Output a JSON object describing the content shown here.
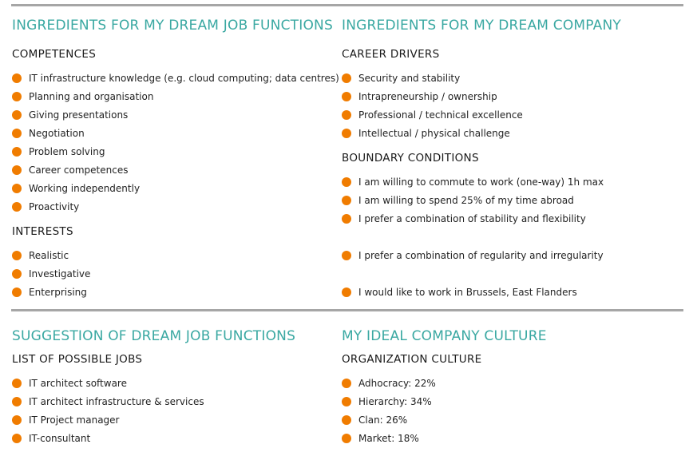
{
  "sections": {
    "dream_job_functions": {
      "title": "INGREDIENTS FOR MY DREAM JOB FUNCTIONS",
      "competences": {
        "title": "COMPETENCES",
        "items": [
          "IT infrastructure knowledge (e.g. cloud computing; data centres)",
          "Planning and organisation",
          "Giving presentations",
          "Negotiation",
          "Problem solving",
          "Career competences",
          "Working independently",
          "Proactivity"
        ]
      },
      "interests": {
        "title": "INTERESTS",
        "items": [
          "Realistic",
          "Investigative",
          "Enterprising"
        ]
      }
    },
    "dream_company": {
      "title": "INGREDIENTS FOR MY DREAM COMPANY",
      "career_drivers": {
        "title": "CAREER DRIVERS",
        "items": [
          "Security and stability",
          "Intrapreneurship / ownership",
          "Professional / technical excellence",
          "Intellectual / physical challenge"
        ]
      },
      "boundary_conditions": {
        "title": "BOUNDARY CONDITIONS",
        "items": [
          "I am willing to commute to work (one-way) 1h max",
          "I am willing to spend 25% of my time abroad",
          "I prefer a combination of stability and flexibility",
          "I prefer a combination of regularity and irregularity",
          "I would like to work in Brussels, East Flanders"
        ]
      }
    },
    "suggested_jobs": {
      "title": "SUGGESTION OF DREAM JOB FUNCTIONS",
      "list": {
        "title": "LIST OF POSSIBLE JOBS",
        "items": [
          "IT architect software",
          "IT architect infrastructure & services",
          "IT Project manager",
          "IT-consultant"
        ]
      }
    },
    "company_culture": {
      "title": "MY IDEAL COMPANY CULTURE",
      "organization": {
        "title": "ORGANIZATION CULTURE",
        "items": [
          "Adhocracy: 22%",
          "Hierarchy: 34%",
          "Clan: 26%",
          "Market: 18%"
        ]
      }
    }
  },
  "colors": {
    "accent_heading": "#3aa8a2",
    "bullet": "#f07c00",
    "rule": "#a6a6a6"
  }
}
